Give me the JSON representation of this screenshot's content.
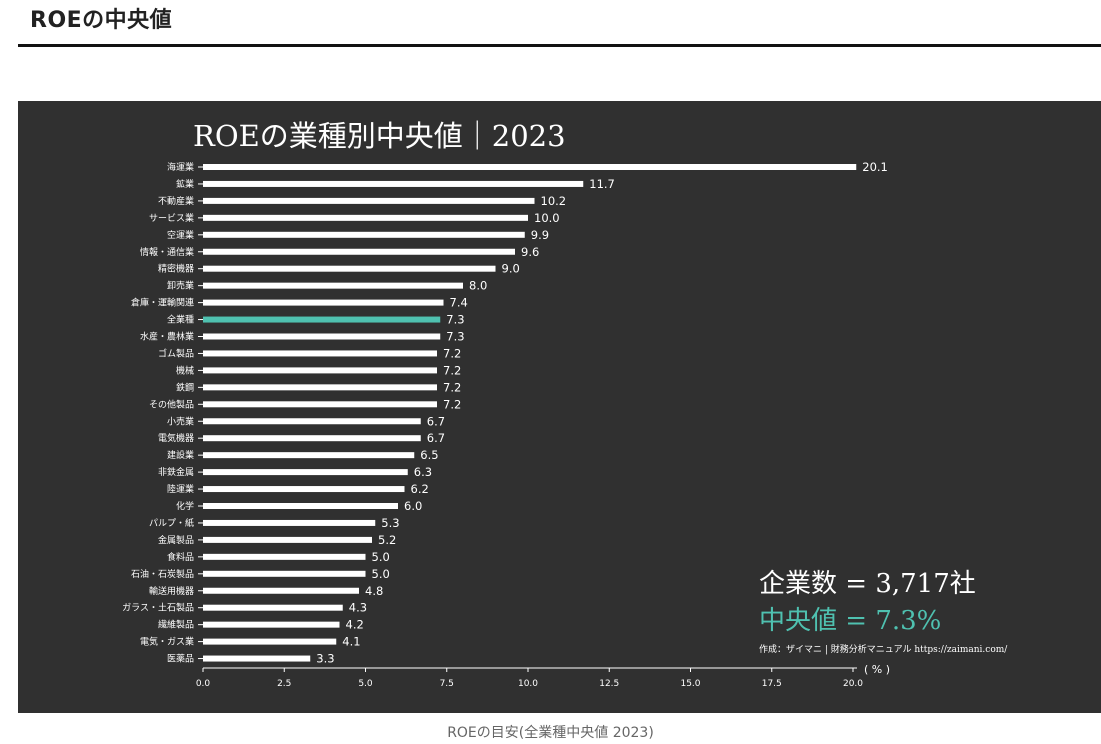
{
  "page": {
    "heading": "ROEの中央値",
    "caption": "ROEの目安(全業種中央値 2023)"
  },
  "chart_data": {
    "type": "bar",
    "orientation": "horizontal",
    "title": "ROEの業種別中央値｜2023",
    "xlabel": "",
    "ylabel": "",
    "unit_label": "( % )",
    "xlim": [
      0,
      20
    ],
    "xticks": [
      "0.0",
      "2.5",
      "5.0",
      "7.5",
      "10.0",
      "12.5",
      "15.0",
      "17.5",
      "20.0"
    ],
    "grid": false,
    "bar_color": "#ffffff",
    "highlight_color": "#4fc1b0",
    "highlight_category": "全業種",
    "categories": [
      "海運業",
      "鉱業",
      "不動産業",
      "サービス業",
      "空運業",
      "情報・通信業",
      "精密機器",
      "卸売業",
      "倉庫・運輸関連",
      "全業種",
      "水産・農林業",
      "ゴム製品",
      "機械",
      "鉄鋼",
      "その他製品",
      "小売業",
      "電気機器",
      "建設業",
      "非鉄金属",
      "陸運業",
      "化学",
      "パルプ・紙",
      "金属製品",
      "食料品",
      "石油・石炭製品",
      "輸送用機器",
      "ガラス・土石製品",
      "繊維製品",
      "電気・ガス業",
      "医薬品"
    ],
    "values": [
      20.1,
      11.7,
      10.2,
      10.0,
      9.9,
      9.6,
      9.0,
      8.0,
      7.4,
      7.3,
      7.3,
      7.2,
      7.2,
      7.2,
      7.2,
      6.7,
      6.7,
      6.5,
      6.3,
      6.2,
      6.0,
      5.3,
      5.2,
      5.0,
      5.0,
      4.8,
      4.3,
      4.2,
      4.1,
      3.3
    ],
    "value_labels": [
      "20.1",
      "11.7",
      "10.2",
      "10.0",
      "9.9",
      "9.6",
      "9.0",
      "8.0",
      "7.4",
      "7.3",
      "7.3",
      "7.2",
      "7.2",
      "7.2",
      "7.2",
      "6.7",
      "6.7",
      "6.5",
      "6.3",
      "6.2",
      "6.0",
      "5.3",
      "5.2",
      "5.0",
      "5.0",
      "4.8",
      "4.3",
      "4.2",
      "4.1",
      "3.3"
    ],
    "annotations": {
      "companies": "企業数 = 3,717社",
      "median": "中央値 = 7.3%",
      "credit": "作成：ザイマニ | 財務分析マニュアル https://zaimani.com/"
    }
  }
}
